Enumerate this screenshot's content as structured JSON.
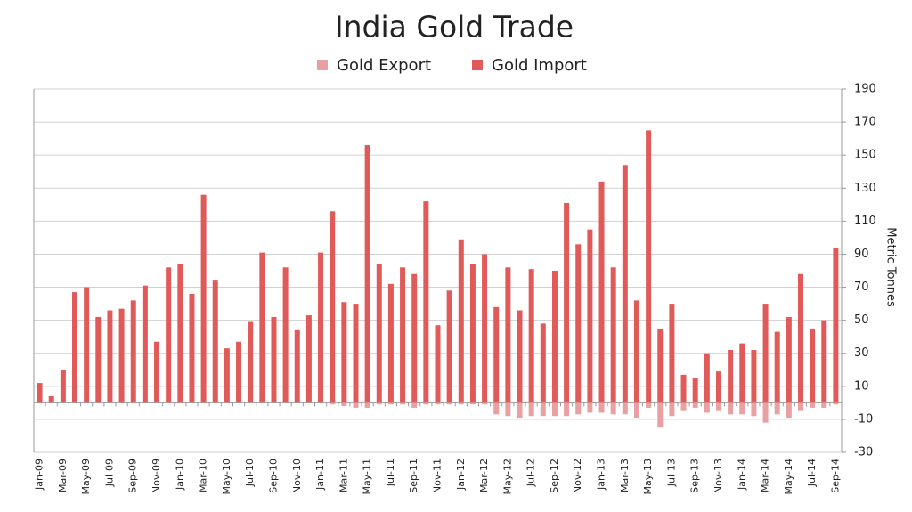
{
  "chart_data": {
    "type": "bar",
    "title": "India Gold Trade",
    "y_axis_label": "Metric Tonnes",
    "categories": [
      "Jan-09",
      null,
      "Mar-09",
      null,
      "May-09",
      null,
      "Jul-09",
      null,
      "Sep-09",
      null,
      "Nov-09",
      null,
      "Jan-10",
      null,
      "Mar-10",
      null,
      "May-10",
      null,
      "Jul-10",
      null,
      "Sep-10",
      null,
      "Nov-10",
      null,
      "Jan-11",
      null,
      "Mar-11",
      null,
      "May-11",
      null,
      "Jul-11",
      null,
      "Sep-11",
      null,
      "Nov-11",
      null,
      "Jan-12",
      null,
      "Mar-12",
      null,
      "May-12",
      null,
      "Jul-12",
      null,
      "Sep-12",
      null,
      "Nov-12",
      null,
      "Jan-13",
      null,
      "Mar-13",
      null,
      "May-13",
      null,
      "Jul-13",
      null,
      "Sep-13",
      null,
      "Nov-13",
      null,
      "Jan-14",
      null,
      "Mar-14",
      null,
      "May-14",
      null,
      "Jul-14",
      null,
      "Sep-14"
    ],
    "series": [
      {
        "name": "Gold Export",
        "color": "#e8a0a3",
        "values": [
          0,
          0,
          0,
          0,
          0,
          0,
          0,
          0,
          0,
          0,
          0,
          0,
          0,
          0,
          0,
          0,
          0,
          0,
          0,
          0,
          0,
          0,
          0,
          0,
          0,
          -1,
          -2,
          -3,
          -3,
          -1,
          -1,
          -1,
          -3,
          -1,
          -1,
          -1,
          -1,
          -1,
          -1,
          -7,
          -8,
          -9,
          -8,
          -8,
          -8,
          -8,
          -7,
          -6,
          -6,
          -7,
          -7,
          -9,
          -3,
          -15,
          -8,
          -5,
          -3,
          -6,
          -5,
          -7,
          -7,
          -8,
          -12,
          -7,
          -9,
          -5,
          -3,
          -3,
          -1
        ]
      },
      {
        "name": "Gold Import",
        "color": "#e05a5a",
        "values": [
          12,
          4,
          20,
          67,
          70,
          52,
          56,
          57,
          62,
          71,
          37,
          82,
          84,
          66,
          126,
          74,
          33,
          37,
          49,
          91,
          52,
          82,
          44,
          53,
          91,
          116,
          61,
          60,
          156,
          84,
          72,
          82,
          78,
          122,
          47,
          68,
          99,
          84,
          90,
          58,
          82,
          56,
          81,
          48,
          80,
          121,
          96,
          105,
          134,
          82,
          144,
          62,
          165,
          45,
          60,
          17,
          15,
          30,
          19,
          32,
          36,
          32,
          60,
          43,
          52,
          78,
          45,
          50,
          94
        ]
      }
    ],
    "ylim": [
      -30,
      190
    ],
    "yticks": [
      -30,
      -10,
      10,
      30,
      50,
      70,
      90,
      110,
      130,
      150,
      170,
      190
    ],
    "grid": true,
    "legend": "top"
  }
}
